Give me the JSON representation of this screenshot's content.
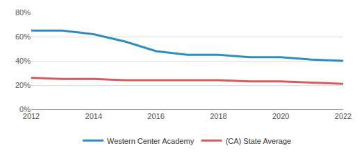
{
  "chart_data": {
    "type": "line",
    "x": [
      2012,
      2013,
      2014,
      2015,
      2016,
      2017,
      2018,
      2019,
      2020,
      2021,
      2022
    ],
    "series": [
      {
        "name": "Western Center Academy",
        "color": "#2b8cc4",
        "values": [
          65,
          65,
          62,
          56,
          48,
          45,
          45,
          43,
          43,
          41,
          40
        ]
      },
      {
        "name": "(CA) State Average",
        "color": "#d65a5e",
        "values": [
          26,
          25,
          25,
          24,
          24,
          24,
          24,
          23,
          23,
          22,
          21
        ]
      }
    ],
    "xlim": [
      2012,
      2022
    ],
    "xticks": [
      2012,
      2014,
      2016,
      2018,
      2020,
      2022
    ],
    "ylim": [
      0,
      80
    ],
    "yticks": [
      {
        "value": 0,
        "label": "0%"
      },
      {
        "value": 20,
        "label": "20%"
      },
      {
        "value": 40,
        "label": "40%"
      },
      {
        "value": 60,
        "label": "60%"
      },
      {
        "value": 80,
        "label": "80%"
      }
    ],
    "grid": true,
    "legend": "bottom"
  }
}
